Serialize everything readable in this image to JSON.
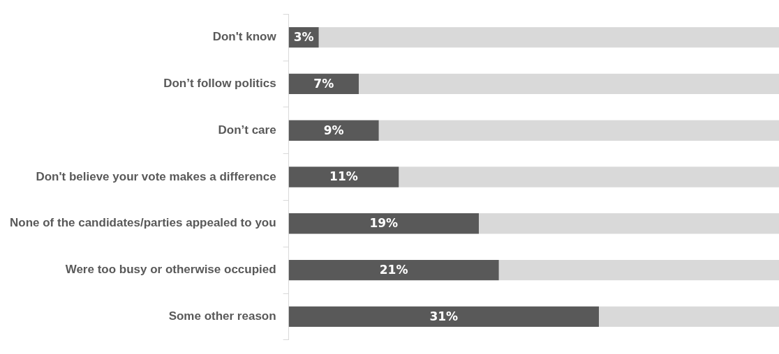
{
  "chart_data": {
    "type": "bar",
    "orientation": "horizontal",
    "stacked": true,
    "categories": [
      "Don't know",
      "Don’t follow politics",
      "Don’t care",
      "Don't believe your vote makes a difference",
      "None of the candidates/parties appealed to you",
      "Were too busy or otherwise occupied",
      "Some other reason"
    ],
    "series": [
      {
        "color": "#595959",
        "values": [
          3,
          7,
          9,
          11,
          19,
          21,
          31
        ],
        "data_labels": true,
        "value_labels": [
          "3%",
          "7%",
          "9%",
          "11%",
          "19%",
          "21%",
          "31%"
        ]
      },
      {
        "color": "#d9d9d9",
        "values": [
          46,
          42,
          40,
          38,
          30,
          28,
          18
        ]
      }
    ],
    "xlim": [
      0,
      49
    ],
    "tick_labels": "y",
    "legend": false
  }
}
